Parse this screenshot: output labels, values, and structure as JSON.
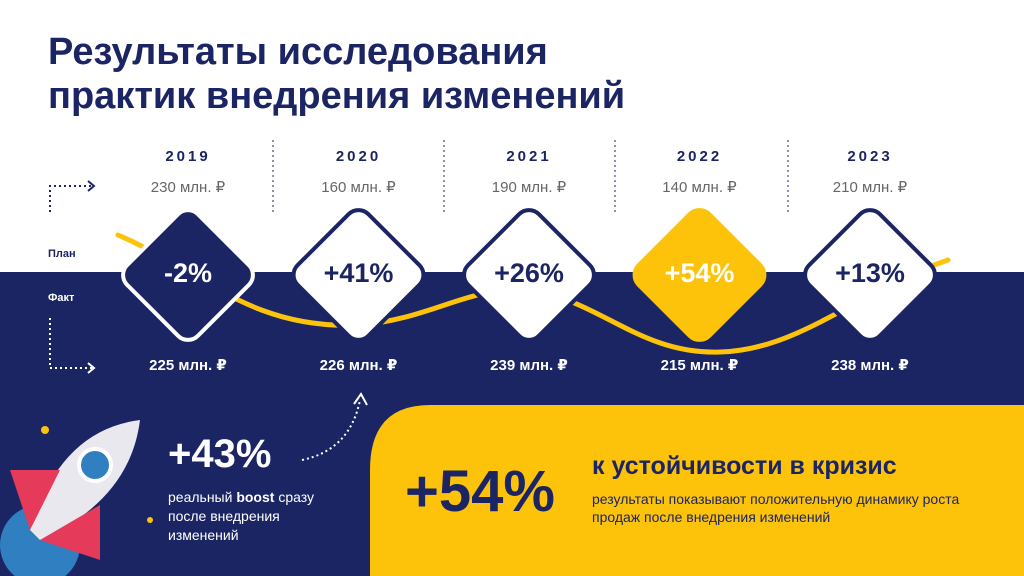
{
  "title": [
    "Результаты исследования",
    "практик внедрения изменений"
  ],
  "row_labels": {
    "plan": "План",
    "fact": "Факт"
  },
  "years": [
    {
      "year": "2019",
      "plan": "230 млн. ₽",
      "change": "-2%",
      "fact": "225 млн. ₽",
      "style": "negative"
    },
    {
      "year": "2020",
      "plan": "160 млн. ₽",
      "change": "+41%",
      "fact": "226 млн. ₽",
      "style": "positive"
    },
    {
      "year": "2021",
      "plan": "190 млн. ₽",
      "change": "+26%",
      "fact": "239 млн. ₽",
      "style": "positive"
    },
    {
      "year": "2022",
      "plan": "140 млн. ₽",
      "change": "+54%",
      "fact": "215 млн. ₽",
      "style": "highlight"
    },
    {
      "year": "2023",
      "plan": "210 млн. ₽",
      "change": "+13%",
      "fact": "238 млн. ₽",
      "style": "positive"
    }
  ],
  "boost": {
    "value": "+43%",
    "text_start": "реальный",
    "text_bold": "boost",
    "text_end": "сразу после внедрения изменений"
  },
  "resilience": {
    "value": "+54%",
    "heading": "к устойчивости в кризис",
    "text": "результаты показывают положительную динамику роста продаж после внедрения изменений"
  }
}
